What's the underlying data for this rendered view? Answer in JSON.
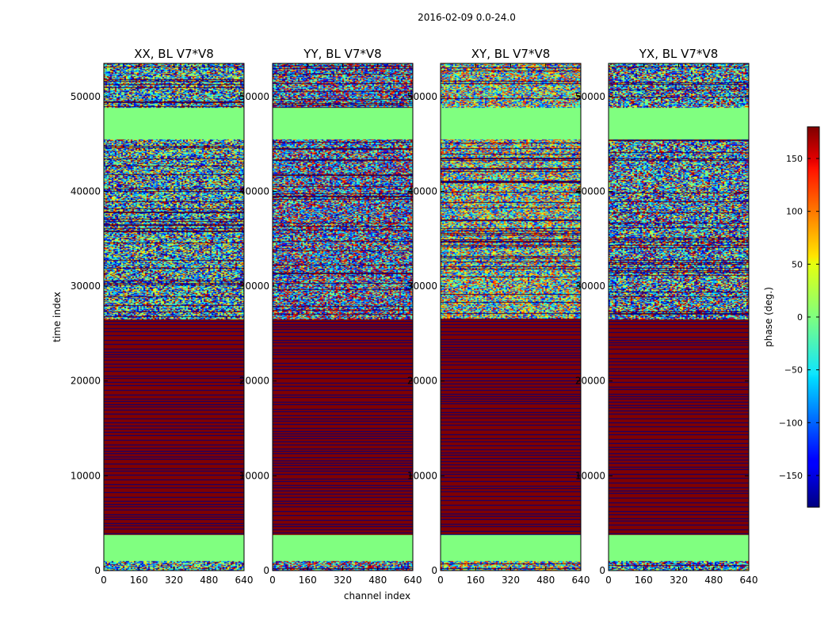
{
  "chart_data": {
    "type": "heatmap",
    "suptitle": "2016-02-09 0.0-24.0",
    "xlabel": "channel index",
    "ylabel": "time index",
    "xlim": [
      0,
      640
    ],
    "ylim": [
      0,
      53500
    ],
    "x_ticks": [
      0,
      160,
      320,
      480,
      640
    ],
    "y_ticks": [
      0,
      10000,
      20000,
      30000,
      40000,
      50000
    ],
    "colormap": "jet",
    "colorbar": {
      "label": "phase (deg.)",
      "range": [
        -180,
        180
      ],
      "ticks": [
        150,
        100,
        50,
        0,
        -50,
        -100,
        -150
      ],
      "tick_labels": [
        "150",
        "100",
        "50",
        "0",
        "−50",
        "−100",
        "−150"
      ]
    },
    "panels": [
      {
        "title": "XX, BL V7*V8",
        "noise_mean": -70
      },
      {
        "title": "YY, BL V7*V8",
        "noise_mean": -120
      },
      {
        "title": "XY, BL V7*V8",
        "noise_mean": 0
      },
      {
        "title": "YX, BL V7*V8",
        "noise_mean": -90
      }
    ],
    "regions": [
      {
        "name": "bottom-noise",
        "t_start": 0,
        "t_end": 1000,
        "phase": "noise"
      },
      {
        "name": "low-flat",
        "t_start": 1000,
        "t_end": 3800,
        "phase": 0
      },
      {
        "name": "striped-block",
        "t_start": 3800,
        "t_end": 26500,
        "phase": 180,
        "stripe_phase": -180
      },
      {
        "name": "noisy-middle",
        "t_start": 26500,
        "t_end": 45500,
        "phase": "noise"
      },
      {
        "name": "high-flat",
        "t_start": 45500,
        "t_end": 48800,
        "phase": 0
      },
      {
        "name": "top-noise",
        "t_start": 48800,
        "t_end": 53500,
        "phase": "noise"
      }
    ]
  }
}
